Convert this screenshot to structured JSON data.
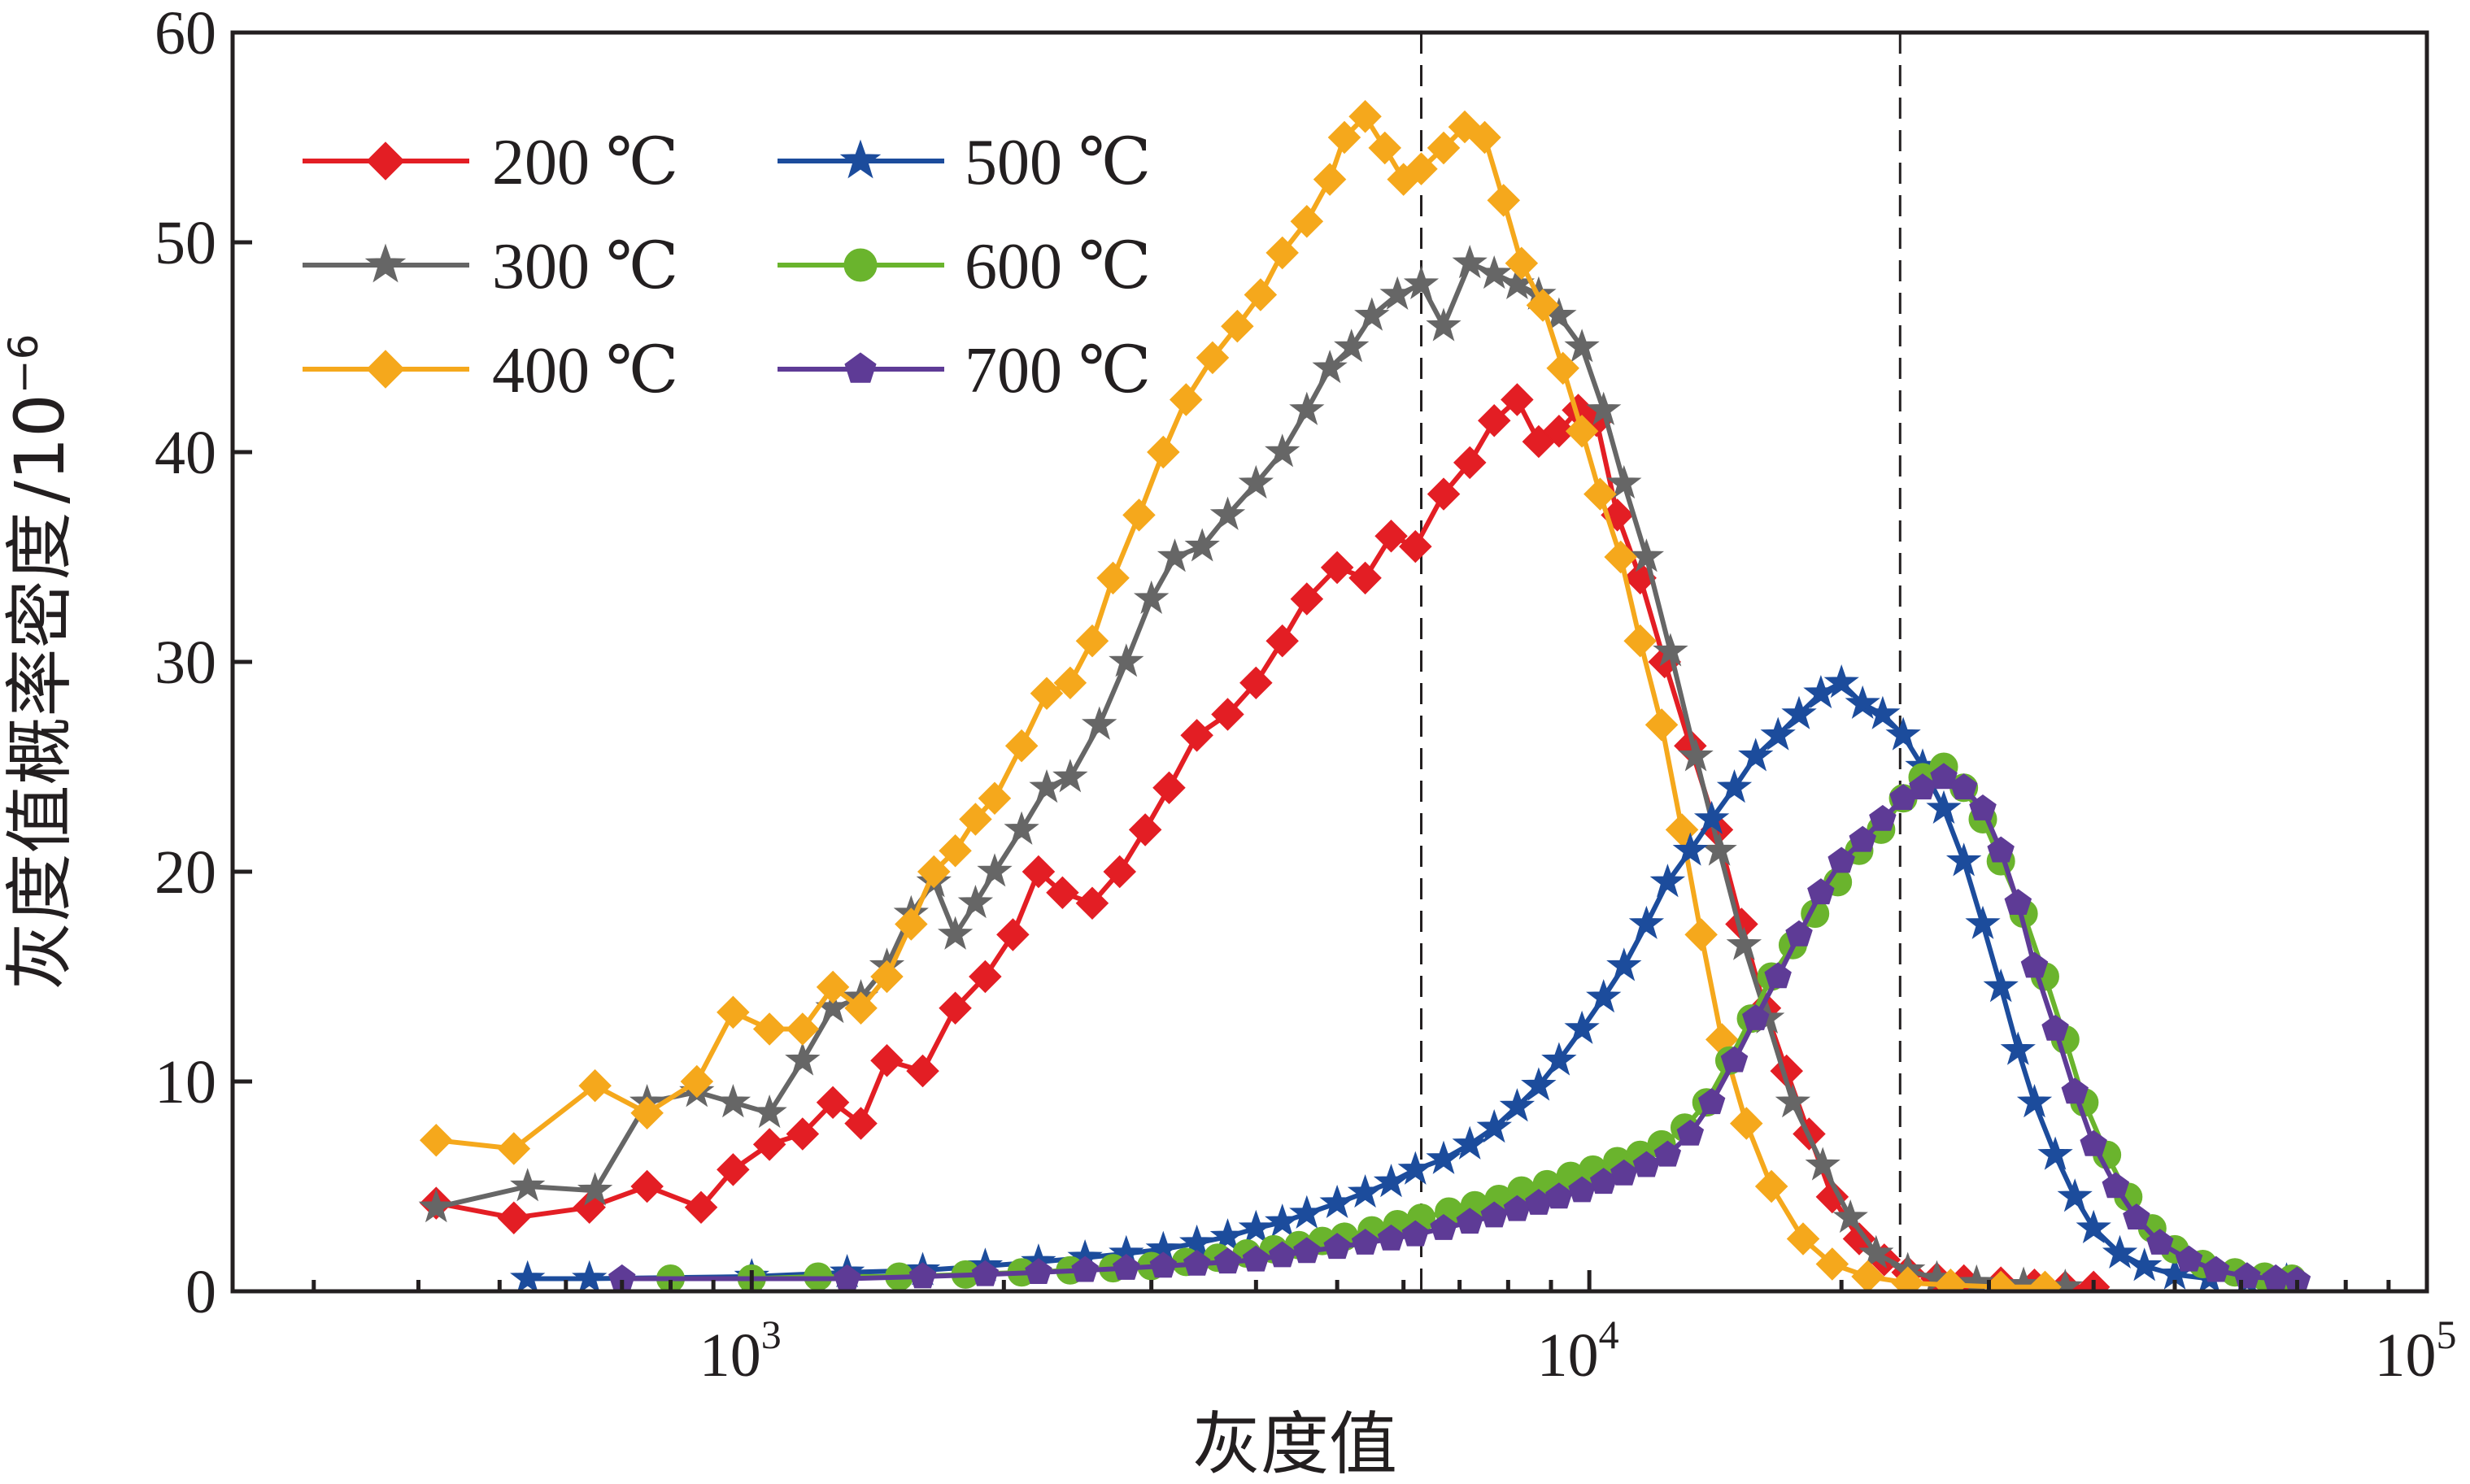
{
  "chart_data": {
    "type": "line",
    "xlabel": "灰度值",
    "ylabel": "灰度值概率密度",
    "ylabel_unit": "/10",
    "ylabel_unit_exp": "−6",
    "xscale": "log",
    "xlim": [
      240,
      100000
    ],
    "ylim": [
      0,
      60
    ],
    "y_ticks": [
      "0",
      "10",
      "20",
      "30",
      "40",
      "50",
      "60"
    ],
    "x_ticks": [
      {
        "value": 1000,
        "base": "10",
        "exp": "3"
      },
      {
        "value": 10000,
        "base": "10",
        "exp": "4"
      },
      {
        "value": 100000,
        "base": "10",
        "exp": "5"
      }
    ],
    "reference_lines_x": [
      6300,
      23500
    ],
    "grid": false,
    "legend_position": "top-left",
    "series": [
      {
        "name": "200 ℃",
        "color": "#e31e24",
        "marker": "diamond",
        "x": [
          420,
          520,
          640,
          750,
          870,
          950,
          1050,
          1150,
          1250,
          1350,
          1450,
          1600,
          1750,
          1900,
          2050,
          2200,
          2350,
          2550,
          2750,
          2950,
          3150,
          3400,
          3700,
          4000,
          4300,
          4600,
          5000,
          5400,
          5800,
          6200,
          6700,
          7200,
          7700,
          8200,
          8700,
          9200,
          9700,
          10200,
          10800,
          11500,
          12300,
          13200,
          14200,
          15200,
          16200,
          17200,
          18300,
          19500,
          21000,
          22500,
          24000,
          26000,
          28000,
          31000,
          34000,
          37000,
          40000
        ],
        "y": [
          4.2,
          3.5,
          4.0,
          5.0,
          4.0,
          5.8,
          7.0,
          7.5,
          9.0,
          8.0,
          11.0,
          10.5,
          13.5,
          15.0,
          17.0,
          20.0,
          19.0,
          18.5,
          20.0,
          22.0,
          24.0,
          26.5,
          27.5,
          29.0,
          31.0,
          33.0,
          34.5,
          34.0,
          36.0,
          35.5,
          38.0,
          39.5,
          41.5,
          42.5,
          40.5,
          41.0,
          42.0,
          41.5,
          37.0,
          34.0,
          30.0,
          26.0,
          22.0,
          17.5,
          13.5,
          10.5,
          7.5,
          4.5,
          2.5,
          1.5,
          0.9,
          0.6,
          0.5,
          0.4,
          0.3,
          0.2,
          0.2
        ]
      },
      {
        "name": "300 ℃",
        "color": "#666666",
        "marker": "star",
        "x": [
          420,
          540,
          650,
          750,
          860,
          950,
          1050,
          1150,
          1250,
          1350,
          1450,
          1550,
          1650,
          1750,
          1850,
          1950,
          2100,
          2250,
          2400,
          2600,
          2800,
          3000,
          3200,
          3450,
          3700,
          4000,
          4300,
          4600,
          4900,
          5200,
          5500,
          5900,
          6300,
          6700,
          7200,
          7700,
          8200,
          8700,
          9200,
          9800,
          10400,
          11000,
          11700,
          12500,
          13400,
          14300,
          15300,
          16300,
          17500,
          19000,
          20500,
          22000,
          24000,
          26000,
          29000,
          33000,
          37000
        ],
        "y": [
          4.0,
          5.0,
          4.8,
          9.0,
          9.5,
          9.0,
          8.5,
          11.0,
          13.5,
          14.0,
          15.5,
          18.0,
          19.5,
          17.0,
          18.5,
          20.0,
          22.0,
          24.0,
          24.5,
          27.0,
          30.0,
          33.0,
          35.0,
          35.5,
          37.0,
          38.5,
          40.0,
          42.0,
          44.0,
          45.0,
          46.5,
          47.5,
          48.0,
          46.0,
          49.0,
          48.5,
          48.0,
          47.5,
          46.5,
          45.0,
          42.0,
          38.5,
          35.0,
          30.5,
          25.5,
          21.0,
          16.5,
          13.0,
          9.0,
          6.0,
          3.5,
          1.8,
          1.0,
          0.6,
          0.4,
          0.3,
          0.2
        ]
      },
      {
        "name": "400 ℃",
        "color": "#f5a81c",
        "marker": "diamond",
        "x": [
          420,
          520,
          650,
          750,
          860,
          950,
          1050,
          1150,
          1250,
          1350,
          1450,
          1550,
          1650,
          1750,
          1850,
          1950,
          2100,
          2250,
          2400,
          2550,
          2700,
          2900,
          3100,
          3300,
          3550,
          3800,
          4050,
          4300,
          4600,
          4900,
          5100,
          5400,
          5700,
          6000,
          6300,
          6700,
          7100,
          7500,
          7900,
          8300,
          8800,
          9300,
          9800,
          10300,
          10900,
          11500,
          12200,
          12900,
          13600,
          14400,
          15400,
          16500,
          18000,
          19500,
          21500,
          24000,
          27000,
          31000,
          35000
        ],
        "y": [
          7.2,
          6.8,
          9.8,
          8.5,
          10.0,
          13.3,
          12.5,
          12.5,
          14.5,
          13.5,
          15.0,
          17.5,
          20.0,
          21.0,
          22.5,
          23.5,
          26.0,
          28.5,
          29.0,
          31.0,
          34.0,
          37.0,
          40.0,
          42.5,
          44.5,
          46.0,
          47.5,
          49.5,
          51.0,
          53.0,
          55.0,
          56.0,
          54.5,
          53.0,
          53.5,
          54.5,
          55.5,
          55.0,
          52.0,
          49.0,
          47.0,
          44.0,
          41.0,
          38.0,
          35.0,
          31.0,
          27.0,
          22.0,
          17.0,
          12.0,
          8.0,
          5.0,
          2.5,
          1.3,
          0.7,
          0.4,
          0.3,
          0.2,
          0.2
        ]
      },
      {
        "name": "500 ℃",
        "color": "#1c4c9c",
        "marker": "star",
        "x": [
          540,
          640,
          1000,
          1300,
          1600,
          1900,
          2200,
          2500,
          2800,
          3100,
          3400,
          3700,
          4000,
          4300,
          4600,
          5000,
          5400,
          5800,
          6200,
          6700,
          7200,
          7700,
          8200,
          8700,
          9200,
          9800,
          10400,
          11000,
          11700,
          12400,
          13200,
          14000,
          14900,
          15800,
          16800,
          17800,
          18900,
          20000,
          21200,
          22400,
          23700,
          25000,
          26500,
          28000,
          29500,
          31000,
          32500,
          34000,
          36000,
          38000,
          40000,
          43000,
          46000,
          50000,
          55000,
          61000,
          68000
        ],
        "y": [
          0.6,
          0.6,
          0.7,
          0.9,
          1.0,
          1.2,
          1.4,
          1.6,
          1.8,
          2.0,
          2.3,
          2.6,
          3.0,
          3.3,
          3.7,
          4.2,
          4.7,
          5.2,
          5.8,
          6.3,
          7.0,
          7.8,
          8.8,
          9.8,
          11.0,
          12.5,
          14.0,
          15.5,
          17.5,
          19.5,
          21.0,
          22.5,
          24.0,
          25.5,
          26.5,
          27.5,
          28.5,
          29.0,
          28.0,
          27.5,
          26.5,
          25.0,
          23.0,
          20.5,
          17.5,
          14.5,
          11.5,
          9.0,
          6.5,
          4.5,
          3.0,
          1.8,
          1.2,
          0.8,
          0.6,
          0.5,
          0.5
        ]
      },
      {
        "name": "600 ℃",
        "color": "#6ab42d",
        "marker": "circle",
        "x": [
          800,
          1000,
          1200,
          1500,
          1800,
          2100,
          2400,
          2700,
          3000,
          3300,
          3600,
          3900,
          4200,
          4500,
          4800,
          5100,
          5500,
          5900,
          6300,
          6800,
          7300,
          7800,
          8300,
          8900,
          9500,
          10100,
          10800,
          11500,
          12200,
          13000,
          13800,
          14700,
          15600,
          16500,
          17500,
          18600,
          19800,
          21000,
          22300,
          23700,
          25000,
          26500,
          28000,
          29500,
          31000,
          33000,
          35000,
          37000,
          39000,
          41500,
          44000,
          47000,
          50000,
          54000,
          59000,
          64000,
          69000
        ],
        "y": [
          0.6,
          0.6,
          0.7,
          0.7,
          0.8,
          0.9,
          1.0,
          1.1,
          1.2,
          1.4,
          1.6,
          1.8,
          2.0,
          2.2,
          2.4,
          2.6,
          2.9,
          3.2,
          3.5,
          3.8,
          4.1,
          4.4,
          4.8,
          5.1,
          5.5,
          5.8,
          6.2,
          6.5,
          7.0,
          7.8,
          9.0,
          11.0,
          13.0,
          15.0,
          16.5,
          18.0,
          19.5,
          21.0,
          22.0,
          23.5,
          24.5,
          25.0,
          24.0,
          22.5,
          20.5,
          18.0,
          15.0,
          12.0,
          9.0,
          6.5,
          4.5,
          3.0,
          2.0,
          1.3,
          0.9,
          0.7,
          0.6
        ]
      },
      {
        "name": "700 ℃",
        "color": "#5e3b96",
        "marker": "pentagon",
        "x": [
          700,
          1300,
          1600,
          1900,
          2200,
          2500,
          2800,
          3100,
          3400,
          3700,
          4000,
          4300,
          4600,
          5000,
          5400,
          5800,
          6200,
          6700,
          7200,
          7700,
          8200,
          8700,
          9200,
          9800,
          10400,
          11000,
          11700,
          12400,
          13200,
          14000,
          14900,
          15800,
          16800,
          17800,
          18900,
          20000,
          21200,
          22400,
          23700,
          25000,
          26500,
          28000,
          29500,
          31000,
          32500,
          34000,
          36000,
          38000,
          40000,
          42500,
          45000,
          48000,
          52000,
          56000,
          61000,
          66000,
          70000
        ],
        "y": [
          0.6,
          0.6,
          0.7,
          0.8,
          0.9,
          1.0,
          1.1,
          1.2,
          1.3,
          1.4,
          1.5,
          1.7,
          1.9,
          2.1,
          2.3,
          2.5,
          2.7,
          3.0,
          3.3,
          3.6,
          3.9,
          4.2,
          4.5,
          4.8,
          5.2,
          5.6,
          6.0,
          6.5,
          7.5,
          9.0,
          11.0,
          13.0,
          15.0,
          17.0,
          19.0,
          20.5,
          21.5,
          22.5,
          23.5,
          24.0,
          24.5,
          24.0,
          23.0,
          21.0,
          18.5,
          15.5,
          12.5,
          9.5,
          7.0,
          5.0,
          3.5,
          2.3,
          1.5,
          1.0,
          0.7,
          0.6,
          0.5
        ]
      }
    ]
  }
}
